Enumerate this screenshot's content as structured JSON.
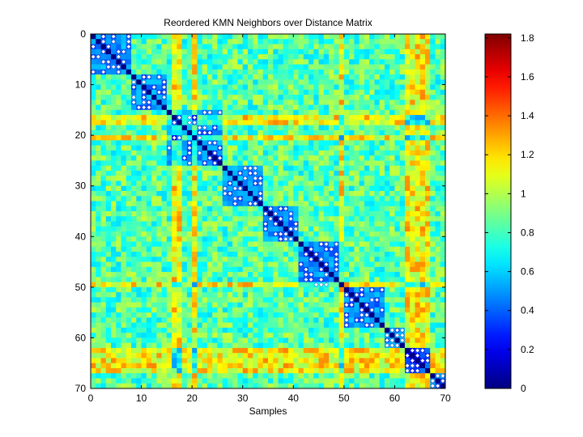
{
  "chart_data": {
    "type": "heatmap",
    "title": "Reordered KMN Neighbors over Distance Matrix",
    "xlabel": "Samples",
    "ylabel": "",
    "n_samples": 70,
    "xlim": [
      0,
      70
    ],
    "ylim": [
      0,
      70
    ],
    "x_ticks": [
      0,
      10,
      20,
      30,
      40,
      50,
      60,
      70
    ],
    "y_ticks": [
      0,
      10,
      20,
      30,
      40,
      50,
      60,
      70
    ],
    "colorbar": {
      "colormap": "jet",
      "range": [
        0,
        1.82
      ],
      "ticks": [
        "0",
        "0.2",
        "0.4",
        "0.6",
        "0.8",
        "1",
        "1.2",
        "1.4",
        "1.6",
        "1.8"
      ],
      "tick_values": [
        0,
        0.2,
        0.4,
        0.6,
        0.8,
        1.0,
        1.2,
        1.4,
        1.6,
        1.8
      ]
    },
    "clusters": [
      [
        0,
        7
      ],
      [
        8,
        14
      ],
      [
        15,
        25
      ],
      [
        26,
        33
      ],
      [
        34,
        40
      ],
      [
        41,
        49
      ],
      [
        50,
        57
      ],
      [
        58,
        61
      ],
      [
        62,
        66
      ],
      [
        67,
        69
      ]
    ],
    "high_distance_samples": [
      16,
      17,
      20,
      49,
      62,
      63,
      64,
      65,
      66
    ],
    "neighbor_markers_description": "White diamond markers indicate KMN neighbor pairs, concentrated along the diagonal blocks"
  }
}
